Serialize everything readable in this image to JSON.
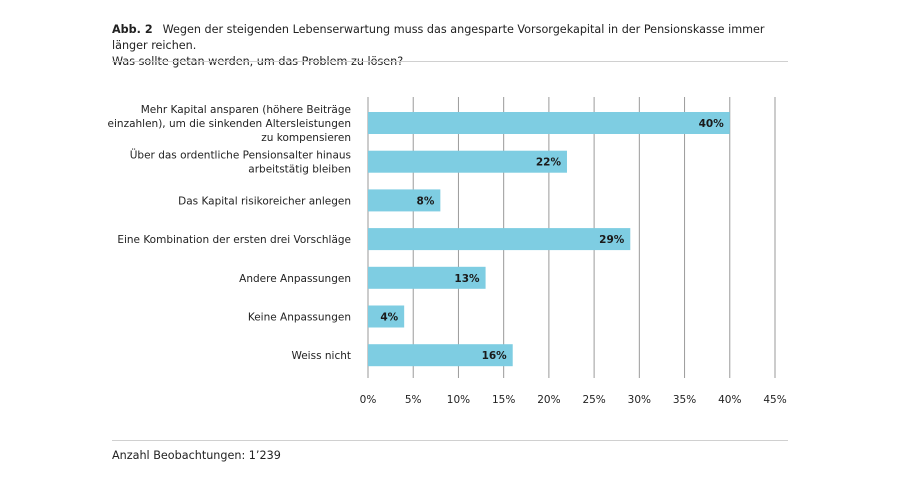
{
  "figure_label": "Abb. 2",
  "title_line1": "Wegen der steigenden Lebenserwartung muss das angesparte Vorsorgekapital in der Pensionskasse immer länger reichen.",
  "title_line2": "Was sollte getan werden, um das Problem zu lösen?",
  "footer": "Anzahl Beobachtungen: 1’239",
  "chart_data": {
    "type": "bar",
    "orientation": "horizontal",
    "categories": [
      [
        "Mehr Kapital ansparen (höhere Beiträge",
        "einzahlen), um die sinkenden Altersleistungen",
        "zu kompensieren"
      ],
      [
        "Über das ordentliche Pensionsalter hinaus",
        "arbeitstätig bleiben"
      ],
      [
        "Das Kapital risikoreicher anlegen"
      ],
      [
        "Eine Kombination der ersten drei Vorschläge"
      ],
      [
        "Andere Anpassungen"
      ],
      [
        "Keine Anpassungen"
      ],
      [
        "Weiss nicht"
      ]
    ],
    "values": [
      40,
      22,
      8,
      29,
      13,
      4,
      16
    ],
    "data_labels": [
      "40%",
      "22%",
      "8%",
      "29%",
      "13%",
      "4%",
      "16%"
    ],
    "xlim": [
      0,
      45
    ],
    "ticks": [
      "0%",
      "5%",
      "10%",
      "15%",
      "20%",
      "25%",
      "30%",
      "35%",
      "40%",
      "45%"
    ],
    "grid": true,
    "bar_color": "#7ecde2",
    "grid_color": "#9a9a9a"
  }
}
